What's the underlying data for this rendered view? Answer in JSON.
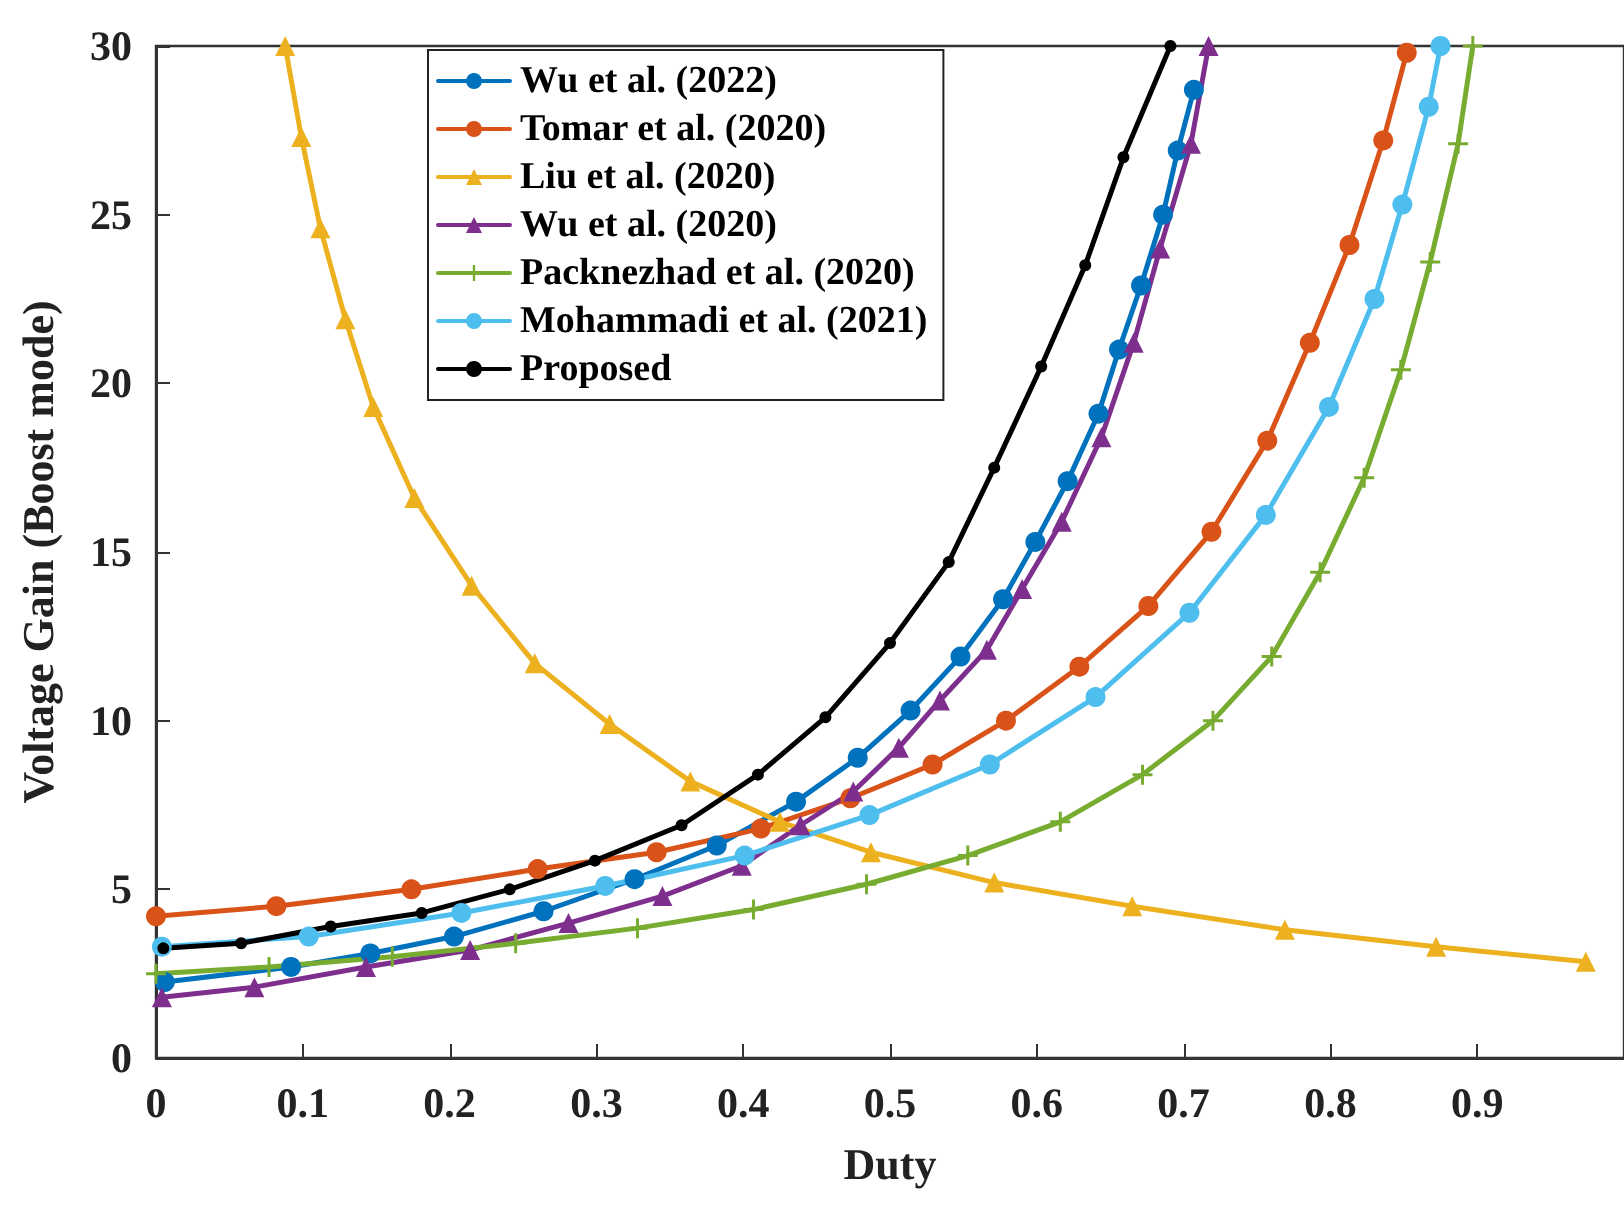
{
  "chart_data": {
    "type": "line",
    "xlabel": "Duty",
    "ylabel": "Voltage Gain (Boost mode)",
    "xlim": [
      0,
      1
    ],
    "xticks": [
      0,
      0.1,
      0.2,
      0.3,
      0.4,
      0.5,
      0.6,
      0.7,
      0.8,
      0.9
    ],
    "ylim": [
      0,
      30
    ],
    "yticks": [
      0,
      5,
      10,
      15,
      20,
      25,
      30
    ],
    "grid": false,
    "legend": "top left",
    "line_style": "solid",
    "series": [
      {
        "name": "Wu et al. (2022)",
        "color": "#0072bd",
        "marker": "circle",
        "x": [
          0.006,
          0.092,
          0.146,
          0.203,
          0.264,
          0.326,
          0.382,
          0.436,
          0.478,
          0.514,
          0.548,
          0.577,
          0.599,
          0.621,
          0.642,
          0.656,
          0.671,
          0.686,
          0.696,
          0.707
        ],
        "values": [
          2.25,
          2.7,
          3.1,
          3.6,
          4.35,
          5.3,
          6.3,
          7.6,
          8.9,
          10.3,
          11.9,
          13.6,
          15.3,
          17.1,
          19.1,
          21.0,
          22.9,
          25.0,
          26.9,
          28.7
        ]
      },
      {
        "name": "Tomar et al. (2020)",
        "color": "#d95319",
        "marker": "circle",
        "x": [
          0.0,
          0.082,
          0.174,
          0.26,
          0.341,
          0.412,
          0.473,
          0.529,
          0.579,
          0.629,
          0.676,
          0.719,
          0.757,
          0.786,
          0.813,
          0.836,
          0.852
        ],
        "values": [
          4.2,
          4.5,
          5.0,
          5.6,
          6.1,
          6.8,
          7.7,
          8.7,
          10.0,
          11.6,
          13.4,
          15.6,
          18.3,
          21.2,
          24.1,
          27.2,
          29.8
        ]
      },
      {
        "name": "Liu et al. (2020)",
        "color": "#edb120",
        "marker": "triangle",
        "x": [
          0.088,
          0.099,
          0.112,
          0.129,
          0.148,
          0.176,
          0.215,
          0.258,
          0.309,
          0.364,
          0.425,
          0.487,
          0.571,
          0.665,
          0.769,
          0.872,
          0.974
        ],
        "values": [
          30,
          27.3,
          24.6,
          21.9,
          19.3,
          16.6,
          14.0,
          11.7,
          9.9,
          8.2,
          7.0,
          6.1,
          5.2,
          4.5,
          3.8,
          3.3,
          2.85
        ]
      },
      {
        "name": "Wu et al. (2020)",
        "color": "#7e2f8e",
        "marker": "triangle",
        "x": [
          0.004,
          0.067,
          0.143,
          0.214,
          0.281,
          0.345,
          0.399,
          0.439,
          0.475,
          0.506,
          0.534,
          0.566,
          0.59,
          0.617,
          0.644,
          0.666,
          0.684,
          0.705,
          0.717
        ],
        "values": [
          1.8,
          2.1,
          2.7,
          3.2,
          4.0,
          4.8,
          5.7,
          6.9,
          7.9,
          9.2,
          10.6,
          12.1,
          13.9,
          15.9,
          18.4,
          21.2,
          24.0,
          27.1,
          30
        ]
      },
      {
        "name": "Packnezhad et al. (2020)",
        "color": "#77ac30",
        "marker": "cross",
        "x": [
          0.0,
          0.077,
          0.161,
          0.245,
          0.328,
          0.407,
          0.484,
          0.553,
          0.616,
          0.672,
          0.72,
          0.76,
          0.793,
          0.823,
          0.848,
          0.868,
          0.887,
          0.897
        ],
        "values": [
          2.5,
          2.7,
          3.0,
          3.4,
          3.85,
          4.4,
          5.15,
          6.0,
          7.0,
          8.4,
          10.0,
          11.9,
          14.4,
          17.2,
          20.4,
          23.6,
          27.1,
          30
        ]
      },
      {
        "name": "Mohammadi et al. (2021)",
        "color": "#4dbeee",
        "marker": "circle",
        "x": [
          0.004,
          0.104,
          0.208,
          0.306,
          0.401,
          0.486,
          0.568,
          0.64,
          0.704,
          0.756,
          0.799,
          0.83,
          0.849,
          0.867,
          0.875
        ],
        "values": [
          3.3,
          3.6,
          4.3,
          5.1,
          6.0,
          7.2,
          8.7,
          10.7,
          13.2,
          16.1,
          19.3,
          22.5,
          25.3,
          28.2,
          30
        ]
      },
      {
        "name": "Proposed",
        "color": "#000000",
        "marker": "circle",
        "x": [
          0.005,
          0.058,
          0.119,
          0.181,
          0.241,
          0.299,
          0.358,
          0.41,
          0.456,
          0.5,
          0.54,
          0.571,
          0.603,
          0.633,
          0.659,
          0.691
        ],
        "values": [
          3.25,
          3.4,
          3.9,
          4.3,
          5.0,
          5.85,
          6.9,
          8.4,
          10.1,
          12.3,
          14.7,
          17.5,
          20.5,
          23.5,
          26.7,
          30
        ]
      }
    ]
  }
}
